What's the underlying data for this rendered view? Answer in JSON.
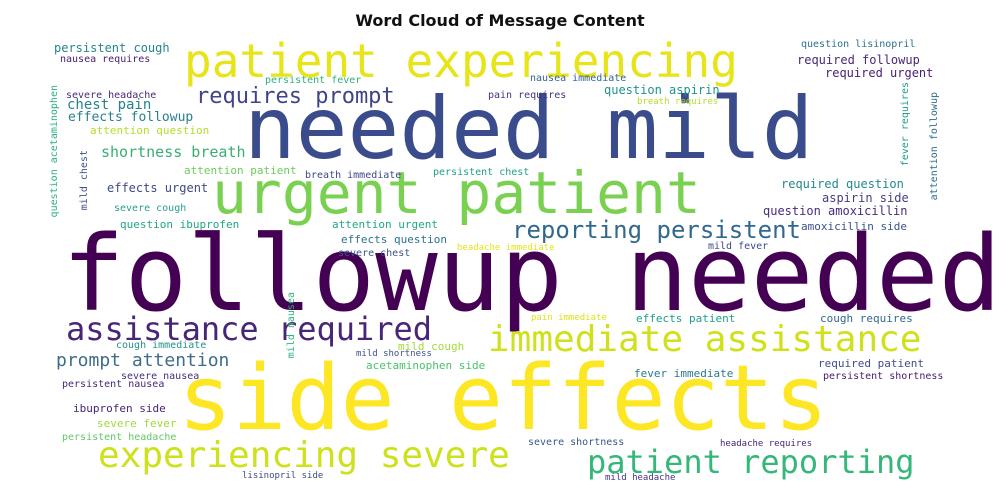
{
  "chart_data": {
    "type": "wordcloud",
    "title": "Word Cloud of Message Content",
    "words": [
      {
        "text": "followup needed",
        "weight": 1.0,
        "color": "#440154"
      },
      {
        "text": "side effects",
        "weight": 0.98,
        "color": "#fde725"
      },
      {
        "text": "needed mild",
        "weight": 0.8,
        "color": "#3b4c8c"
      },
      {
        "text": "urgent patient",
        "weight": 0.55,
        "color": "#7ad151"
      },
      {
        "text": "patient experiencing",
        "weight": 0.45,
        "color": "#e7e419"
      },
      {
        "text": "experiencing severe",
        "weight": 0.36,
        "color": "#cde11d"
      },
      {
        "text": "immediate assistance",
        "weight": 0.36,
        "color": "#d0e11c"
      },
      {
        "text": "assistance required",
        "weight": 0.34,
        "color": "#482677"
      },
      {
        "text": "patient reporting",
        "weight": 0.3,
        "color": "#35b779"
      },
      {
        "text": "reporting persistent",
        "weight": 0.24,
        "color": "#31688e"
      },
      {
        "text": "requires prompt",
        "weight": 0.22,
        "color": "#414487"
      },
      {
        "text": "prompt attention",
        "weight": 0.17,
        "color": "#3e6c8a"
      },
      {
        "text": "shortness breath",
        "weight": 0.15,
        "color": "#3aae75"
      },
      {
        "text": "chest pain",
        "weight": 0.14,
        "color": "#26828e"
      },
      {
        "text": "effects followup",
        "weight": 0.13,
        "color": "#26828e"
      },
      {
        "text": "persistent cough",
        "weight": 0.12,
        "color": "#25858e"
      },
      {
        "text": "required followup",
        "weight": 0.12,
        "color": "#482878"
      },
      {
        "text": "required urgent",
        "weight": 0.12,
        "color": "#482173"
      },
      {
        "text": "question aspirin",
        "weight": 0.12,
        "color": "#20928c"
      },
      {
        "text": "effects urgent",
        "weight": 0.12,
        "color": "#3e4a89"
      },
      {
        "text": "required question",
        "weight": 0.12,
        "color": "#23888e"
      },
      {
        "text": "aspirin side",
        "weight": 0.12,
        "color": "#433e85"
      },
      {
        "text": "question amoxicillin",
        "weight": 0.12,
        "color": "#472d7b"
      },
      {
        "text": "question ibuprofen",
        "weight": 0.11,
        "color": "#21a685"
      },
      {
        "text": "attention urgent",
        "weight": 0.11,
        "color": "#22a785"
      },
      {
        "text": "effects question",
        "weight": 0.11,
        "color": "#2c728e"
      },
      {
        "text": "amoxicillin side",
        "weight": 0.11,
        "color": "#3b528b"
      },
      {
        "text": "ibuprofen side",
        "weight": 0.11,
        "color": "#482475"
      },
      {
        "text": "fever immediate",
        "weight": 0.11,
        "color": "#2a788e"
      },
      {
        "text": "required patient",
        "weight": 0.11,
        "color": "#3e4c8a"
      },
      {
        "text": "cough requires",
        "weight": 0.11,
        "color": "#31688e"
      },
      {
        "text": "effects patient",
        "weight": 0.11,
        "color": "#1f9e89"
      },
      {
        "text": "attention patient",
        "weight": 0.11,
        "color": "#6ccd5a"
      },
      {
        "text": "attention question",
        "weight": 0.11,
        "color": "#b5de2b"
      },
      {
        "text": "severe fever",
        "weight": 0.11,
        "color": "#a0da39"
      },
      {
        "text": "mild cough",
        "weight": 0.11,
        "color": "#a5db36"
      },
      {
        "text": "acetaminophen side",
        "weight": 0.11,
        "color": "#4ac16d"
      },
      {
        "text": "mild fever",
        "weight": 0.1,
        "color": "#3e4989"
      },
      {
        "text": "severe headache",
        "weight": 0.1,
        "color": "#482878"
      },
      {
        "text": "severe cough",
        "weight": 0.1,
        "color": "#2a9d8c"
      },
      {
        "text": "question lisinopril",
        "weight": 0.1,
        "color": "#2c718e"
      },
      {
        "text": "nausea requires",
        "weight": 0.1,
        "color": "#482173"
      },
      {
        "text": "persistent fever",
        "weight": 0.1,
        "color": "#2db27d"
      },
      {
        "text": "nausea immediate",
        "weight": 0.1,
        "color": "#33638d"
      },
      {
        "text": "pain requires",
        "weight": 0.1,
        "color": "#46337e"
      },
      {
        "text": "breath immediate",
        "weight": 0.1,
        "color": "#3f4788"
      },
      {
        "text": "persistent chest",
        "weight": 0.1,
        "color": "#1fa088"
      },
      {
        "text": "severe chest",
        "weight": 0.1,
        "color": "#3b528b"
      },
      {
        "text": "cough immediate",
        "weight": 0.1,
        "color": "#21918c"
      },
      {
        "text": "severe nausea",
        "weight": 0.1,
        "color": "#46307e"
      },
      {
        "text": "persistent nausea",
        "weight": 0.1,
        "color": "#482878"
      },
      {
        "text": "persistent headache",
        "weight": 0.1,
        "color": "#5ec962"
      },
      {
        "text": "persistent shortness",
        "weight": 0.1,
        "color": "#481b6d"
      },
      {
        "text": "severe shortness",
        "weight": 0.1,
        "color": "#39568c"
      },
      {
        "text": "headache requires",
        "weight": 0.09,
        "color": "#482475"
      },
      {
        "text": "lisinopril side",
        "weight": 0.09,
        "color": "#3e4a89"
      },
      {
        "text": "mild headache",
        "weight": 0.09,
        "color": "#46327e"
      },
      {
        "text": "breath requires",
        "weight": 0.09,
        "color": "#b5de2b"
      },
      {
        "text": "headache immediate",
        "weight": 0.09,
        "color": "#e5e419"
      },
      {
        "text": "pain immediate",
        "weight": 0.09,
        "color": "#dde318"
      },
      {
        "text": "mild shortness",
        "weight": 0.09,
        "color": "#3b528b"
      },
      {
        "text": "question acetaminophen",
        "weight": 0.1,
        "color": "#2ab07f"
      },
      {
        "text": "mild chest",
        "weight": 0.1,
        "color": "#3b528b"
      },
      {
        "text": "mild nausea",
        "weight": 0.1,
        "color": "#2eb37c"
      },
      {
        "text": "severe headache",
        "weight": 0.1,
        "color": "#3e4a89"
      },
      {
        "text": "fever requires",
        "weight": 0.1,
        "color": "#1f9a8a"
      },
      {
        "text": "attention followup",
        "weight": 0.1,
        "color": "#2e6e8e"
      }
    ]
  }
}
